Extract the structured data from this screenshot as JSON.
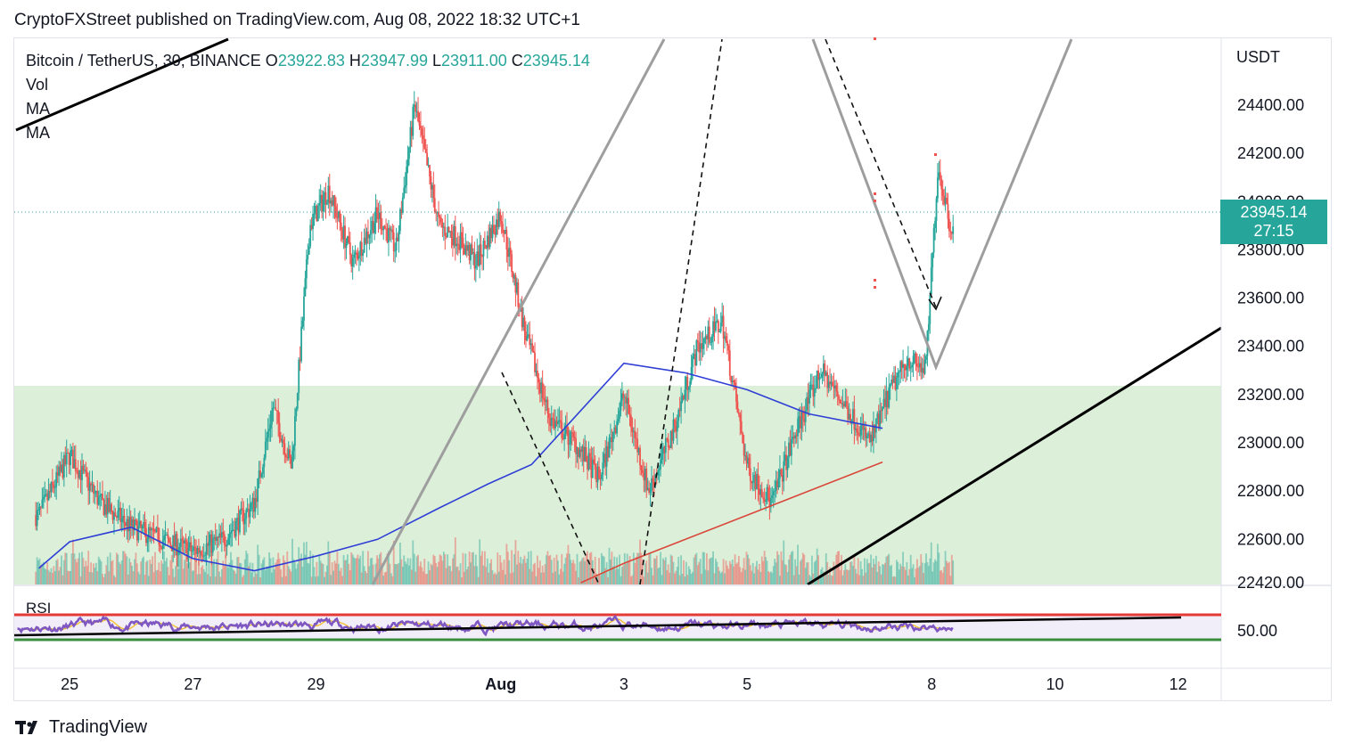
{
  "header": {
    "publisher_line": "CryptoFXStreet published on TradingView.com, Aug 08, 2022 18:32 UTC+1"
  },
  "legend": {
    "title": "Bitcoin / TetherUS, 30, BINANCE",
    "open_label": "O",
    "open": "23922.83",
    "high_label": "H",
    "high": "23947.99",
    "low_label": "L",
    "low": "23911.00",
    "close_label": "C",
    "close": "23945.14",
    "vol": "Vol",
    "ma1": "MA",
    "ma2": "MA",
    "rsi": "RSI"
  },
  "price_axis": {
    "currency": "USDT",
    "rsi_level_label": "50.00"
  },
  "price_tag": {
    "price": "23945.14",
    "countdown": "27:15"
  },
  "brand": {
    "name": "TradingView",
    "icon": "tradingview-logo-icon"
  },
  "colors": {
    "up": "#26a69a",
    "down": "#ef5350",
    "ma_fast": "#2f3fd6",
    "ma_slow": "#d9483b",
    "zone": "#dcefd9",
    "rsi": "#7e57c2",
    "rsi_upper": "#e53935",
    "rsi_lower": "#388e3c"
  },
  "chart_data": {
    "type": "candlestick",
    "y_ticks": [
      "24400.00",
      "24200.00",
      "24000.00",
      "23800.00",
      "23600.00",
      "23400.00",
      "23200.00",
      "23000.00",
      "22800.00",
      "22600.00",
      "22420.00"
    ],
    "x_ticks": [
      "25",
      "27",
      "29",
      "Aug",
      "3",
      "5",
      "8",
      "10",
      "12"
    ],
    "last_price": 23945.14,
    "ylim": [
      22420,
      24600
    ],
    "demand_zone": [
      22420,
      23220
    ],
    "price_path_x": [
      24.5,
      25,
      25.5,
      26,
      26.5,
      27,
      27.5,
      28,
      28.3,
      28.6,
      28.9,
      29.2,
      29.6,
      30,
      30.3,
      30.6,
      31,
      31.3,
      31.6,
      32,
      32.4,
      32.8,
      33.2,
      33.6,
      34,
      34.4,
      34.8,
      35.2,
      35.6,
      36,
      36.4,
      36.8,
      37.2,
      37.6,
      38,
      38.3,
      38.6,
      38.9,
      39.1,
      39.3
    ],
    "price_path_y": [
      22700,
      22950,
      22750,
      22650,
      22600,
      22550,
      22600,
      22750,
      23150,
      22900,
      23900,
      24050,
      23750,
      23950,
      23800,
      24400,
      23900,
      23850,
      23750,
      23950,
      23450,
      23100,
      23000,
      22850,
      23200,
      22800,
      23050,
      23400,
      23500,
      22900,
      22750,
      23050,
      23300,
      23150,
      23000,
      23200,
      23350,
      23300,
      24150,
      23900
    ],
    "ma_fast_x": [
      24.5,
      25,
      26,
      27,
      28,
      29,
      30,
      31,
      31.8,
      32.5,
      33,
      34,
      35,
      36,
      37,
      38.2
    ],
    "ma_fast_y": [
      22480,
      22590,
      22650,
      22520,
      22470,
      22530,
      22600,
      22730,
      22830,
      22910,
      23050,
      23330,
      23290,
      23220,
      23120,
      23060
    ],
    "ma_slow_x": [
      33.3,
      34,
      35,
      36,
      37,
      38.2
    ],
    "ma_slow_y": [
      22420,
      22500,
      22600,
      22700,
      22800,
      22920
    ],
    "x_range": [
      24.1,
      43.7
    ]
  }
}
